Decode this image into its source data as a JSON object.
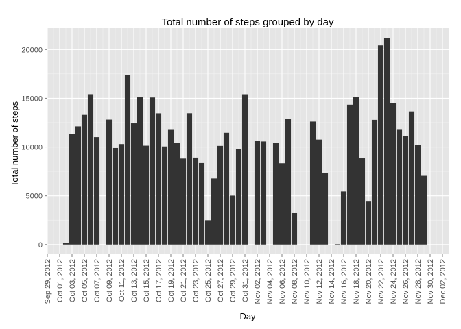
{
  "chart_data": {
    "type": "bar",
    "title": "Total number of steps grouped by day",
    "xlabel": "Day",
    "ylabel": "Total number of steps",
    "ylim": [
      -1000,
      22200
    ],
    "yticks": [
      0,
      5000,
      10000,
      15000,
      20000
    ],
    "ytick_labels": [
      "0",
      "5000",
      "10000",
      "15000",
      "20000"
    ],
    "x_range": [
      "2012-09-29",
      "2012-12-03"
    ],
    "xtick_dates": [
      "2012-09-29",
      "2012-10-01",
      "2012-10-03",
      "2012-10-05",
      "2012-10-07",
      "2012-10-09",
      "2012-10-11",
      "2012-10-13",
      "2012-10-15",
      "2012-10-17",
      "2012-10-19",
      "2012-10-21",
      "2012-10-23",
      "2012-10-25",
      "2012-10-27",
      "2012-10-29",
      "2012-10-31",
      "2012-11-02",
      "2012-11-04",
      "2012-11-06",
      "2012-11-08",
      "2012-11-10",
      "2012-11-12",
      "2012-11-14",
      "2012-11-16",
      "2012-11-18",
      "2012-11-20",
      "2012-11-22",
      "2012-11-24",
      "2012-11-26",
      "2012-11-28",
      "2012-11-30",
      "2012-12-02"
    ],
    "xtick_labels": [
      "Sep 29, 2012",
      "Oct 01, 2012",
      "Oct 03, 2012",
      "Oct 05, 2012",
      "Oct 07, 2012",
      "Oct 09, 2012",
      "Oct 11, 2012",
      "Oct 13, 2012",
      "Oct 15, 2012",
      "Oct 17, 2012",
      "Oct 19, 2012",
      "Oct 21, 2012",
      "Oct 23, 2012",
      "Oct 25, 2012",
      "Oct 27, 2012",
      "Oct 29, 2012",
      "Oct 31, 2012",
      "Nov 02, 2012",
      "Nov 04, 2012",
      "Nov 06, 2012",
      "Nov 08, 2012",
      "Nov 10, 2012",
      "Nov 12, 2012",
      "Nov 14, 2012",
      "Nov 16, 2012",
      "Nov 18, 2012",
      "Nov 20, 2012",
      "Nov 22, 2012",
      "Nov 24, 2012",
      "Nov 26, 2012",
      "Nov 28, 2012",
      "Nov 30, 2012",
      "Dec 02, 2012"
    ],
    "x": [
      "2012-10-01",
      "2012-10-02",
      "2012-10-03",
      "2012-10-04",
      "2012-10-05",
      "2012-10-06",
      "2012-10-07",
      "2012-10-08",
      "2012-10-09",
      "2012-10-10",
      "2012-10-11",
      "2012-10-12",
      "2012-10-13",
      "2012-10-14",
      "2012-10-15",
      "2012-10-16",
      "2012-10-17",
      "2012-10-18",
      "2012-10-19",
      "2012-10-20",
      "2012-10-21",
      "2012-10-22",
      "2012-10-23",
      "2012-10-24",
      "2012-10-25",
      "2012-10-26",
      "2012-10-27",
      "2012-10-28",
      "2012-10-29",
      "2012-10-30",
      "2012-10-31",
      "2012-11-01",
      "2012-11-02",
      "2012-11-03",
      "2012-11-04",
      "2012-11-05",
      "2012-11-06",
      "2012-11-07",
      "2012-11-08",
      "2012-11-09",
      "2012-11-10",
      "2012-11-11",
      "2012-11-12",
      "2012-11-13",
      "2012-11-14",
      "2012-11-15",
      "2012-11-16",
      "2012-11-17",
      "2012-11-18",
      "2012-11-19",
      "2012-11-20",
      "2012-11-21",
      "2012-11-22",
      "2012-11-23",
      "2012-11-24",
      "2012-11-25",
      "2012-11-26",
      "2012-11-27",
      "2012-11-28",
      "2012-11-29",
      "2012-11-30"
    ],
    "values": [
      0,
      126,
      11352,
      12116,
      13294,
      15420,
      11015,
      0,
      12811,
      9900,
      10304,
      17382,
      12426,
      15098,
      10139,
      15084,
      13452,
      10056,
      11829,
      10395,
      8821,
      13460,
      8918,
      8355,
      2492,
      6778,
      10119,
      11458,
      5018,
      9819,
      15414,
      0,
      10600,
      10571,
      0,
      10439,
      8334,
      12883,
      3219,
      0,
      0,
      12608,
      10765,
      7336,
      0,
      41,
      5441,
      14339,
      15110,
      8841,
      4472,
      12787,
      20427,
      21194,
      14478,
      11834,
      11162,
      13646,
      10183,
      7047,
      0
    ],
    "grid": true,
    "legend": "none",
    "colors": {
      "panel": "#e5e5e5",
      "grid_major": "#ffffff",
      "grid_minor": "#f2f2f2",
      "bar": "#333333",
      "tick_text": "#4d4d4d",
      "tick_mark": "#7f7f7f"
    }
  }
}
